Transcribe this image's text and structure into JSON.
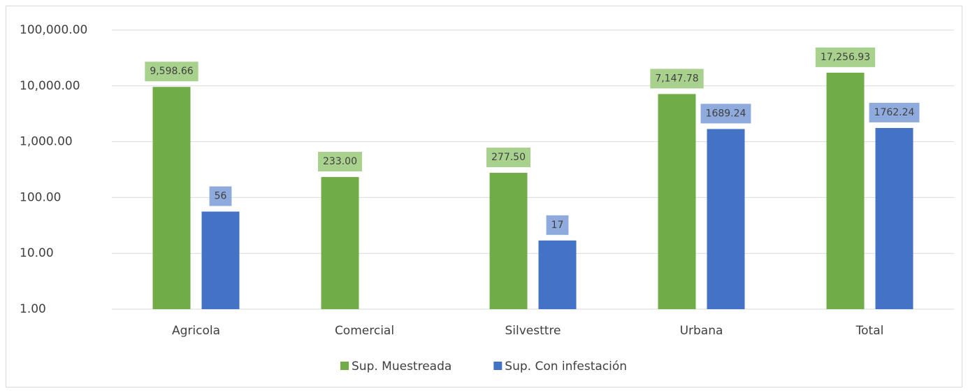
{
  "chart_data": {
    "type": "bar",
    "categories": [
      "Agricola",
      "Comercial",
      "Silvesttre",
      "Urbana",
      "Total"
    ],
    "series": [
      {
        "name": "Sup. Muestreada",
        "color": "#70ad47",
        "label_color": "#a9d18e",
        "values": [
          9598.66,
          233,
          277.5,
          7147.78,
          17256.93
        ],
        "value_labels": [
          "9,598.66",
          "233.00",
          "277.50",
          "7,147.78",
          "17,256.93"
        ]
      },
      {
        "name": "Sup. Con infestación",
        "color": "#4472c4",
        "label_color": "#8faadc",
        "values": [
          56,
          null,
          17,
          1689.24,
          1762.24
        ]
      }
    ],
    "ylim": [
      1,
      100000
    ],
    "yticks": [
      {
        "value": 1,
        "label": "1.00"
      },
      {
        "value": 10,
        "label": "10.00"
      },
      {
        "value": 100,
        "label": "100.00"
      },
      {
        "value": 1000,
        "label": "1,000.00"
      },
      {
        "value": 10000,
        "label": "10,000.00"
      },
      {
        "value": 100000,
        "label": "100,000.00"
      }
    ],
    "log_scale": true,
    "grid": true,
    "legend": "bottom"
  }
}
